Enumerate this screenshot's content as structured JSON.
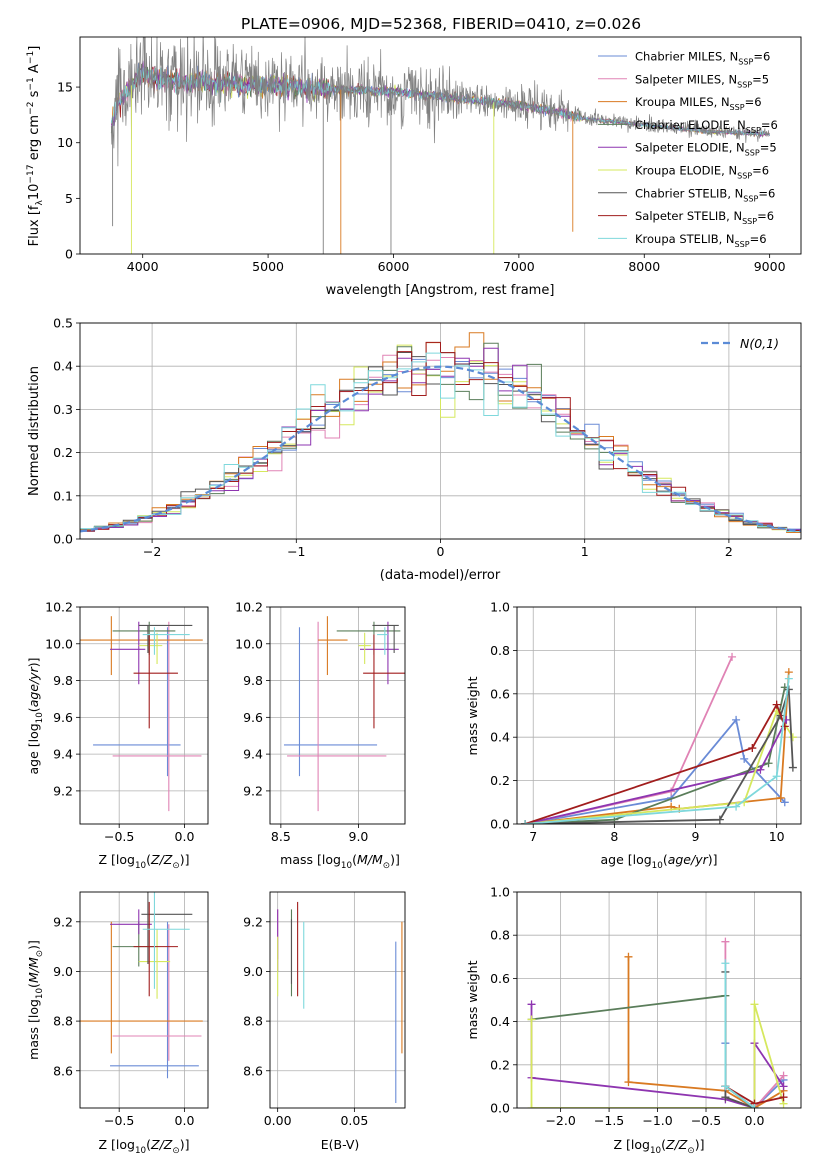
{
  "title": "PLATE=0906, MJD=52368, FIBERID=0410, z=0.026",
  "colors": [
    "#6a8bd6",
    "#e083b5",
    "#d97a22",
    "#5a7d5a",
    "#8e35b0",
    "#d6e85e",
    "#555555",
    "#a11d1d",
    "#7fd8dc"
  ],
  "chart_data": [
    {
      "id": "spectrum",
      "type": "line",
      "xlabel": "wavelength [Angstrom, rest frame]",
      "ylabel": "Flux [f_λ 10^-17 erg cm^-2 s^-1 A^-1]",
      "xlim": [
        3500,
        9250
      ],
      "ylim": [
        0,
        19.5
      ],
      "xticks": [
        4000,
        5000,
        6000,
        7000,
        8000,
        9000
      ],
      "yticks": [
        0,
        5,
        10,
        15
      ],
      "legend_position": "upper-right",
      "legend": [
        {
          "name": "Chabrier MILES",
          "n": "6"
        },
        {
          "name": "Salpeter MILES",
          "n": "5"
        },
        {
          "name": "Kroupa MILES",
          "n": "6"
        },
        {
          "name": "Chabrier ELODIE",
          "n": "6"
        },
        {
          "name": "Salpeter ELODIE",
          "n": "5"
        },
        {
          "name": "Kroupa ELODIE",
          "n": "6"
        },
        {
          "name": "Chabrier STELIB",
          "n": "6"
        },
        {
          "name": "Salpeter STELIB",
          "n": "6"
        },
        {
          "name": "Kroupa STELIB",
          "n": "6"
        }
      ],
      "legend_n_label": "N",
      "legend_n_sub": "SSP",
      "continuum": {
        "x": [
          3750,
          3800,
          3900,
          4000,
          4100,
          4300,
          4600,
          5000,
          5500,
          6000,
          6500,
          7000,
          7300,
          7500,
          8000,
          8500,
          9000
        ],
        "y": [
          11.5,
          13.5,
          15.0,
          16.5,
          15.8,
          15.5,
          15.3,
          15.2,
          14.8,
          14.6,
          14.0,
          13.4,
          12.8,
          12.2,
          11.6,
          11.0,
          10.8
        ]
      }
    },
    {
      "id": "residuals",
      "type": "histogram",
      "xlabel": "(data-model)/error",
      "ylabel": "Normed distribution",
      "xlim": [
        -2.5,
        2.5
      ],
      "ylim": [
        0,
        0.5
      ],
      "xticks": [
        -2,
        -1,
        0,
        1,
        2
      ],
      "yticks": [
        0.0,
        0.1,
        0.2,
        0.3,
        0.4,
        0.5
      ],
      "bin_width": 0.1,
      "legend_label": "N(0,1)",
      "legend_position": "upper-right"
    },
    {
      "id": "age-vs-z",
      "type": "errorbar",
      "xlabel": "Z [log10(Z/Z⊙)]",
      "ylabel": "age [log10(age/yr)]",
      "xlim": [
        -0.8,
        0.18
      ],
      "ylim": [
        9.02,
        10.2
      ],
      "xticks": [
        -0.5,
        0.0
      ],
      "yticks": [
        9.2,
        9.4,
        9.6,
        9.8,
        10.0,
        10.2
      ],
      "points": [
        {
          "x": -0.13,
          "y": 9.45,
          "xe": [
            0.57,
            0.1
          ],
          "ye": [
            0.17,
            0.64
          ]
        },
        {
          "x": -0.12,
          "y": 9.39,
          "xe": [
            0.43,
            0.25
          ],
          "ye": [
            0.3,
            0.73
          ]
        },
        {
          "x": -0.56,
          "y": 10.02,
          "xe": [
            0.24,
            0.7
          ],
          "ye": [
            0.19,
            0.13
          ]
        },
        {
          "x": -0.27,
          "y": 10.07,
          "xe": [
            0.28,
            0.2
          ],
          "ye": [
            0.13,
            0.05
          ]
        },
        {
          "x": -0.35,
          "y": 9.97,
          "xe": [
            0.22,
            0.05
          ],
          "ye": [
            0.19,
            0.15
          ]
        },
        {
          "x": -0.21,
          "y": 9.99,
          "xe": [
            0.14,
            0.04
          ],
          "ye": [
            0.1,
            0.07
          ]
        },
        {
          "x": -0.28,
          "y": 10.1,
          "xe": [
            0.07,
            0.34
          ],
          "ye": [
            0.15,
            0.0
          ]
        },
        {
          "x": -0.27,
          "y": 9.84,
          "xe": [
            0.12,
            0.22
          ],
          "ye": [
            0.3,
            0.21
          ]
        },
        {
          "x": -0.23,
          "y": 10.05,
          "xe": [
            0.09,
            0.27
          ],
          "ye": [
            0.11,
            0.04
          ]
        }
      ]
    },
    {
      "id": "age-vs-mass",
      "type": "errorbar",
      "xlabel": "mass [log10(M/M⊙)]",
      "ylabel": "",
      "xlim": [
        8.43,
        9.3
      ],
      "ylim": [
        9.02,
        10.2
      ],
      "xticks": [
        8.5,
        9.0
      ],
      "yticks": [
        9.2,
        9.4,
        9.6,
        9.8,
        10.0,
        10.2
      ],
      "points": [
        {
          "x": 8.62,
          "y": 9.45,
          "xe": [
            0.1,
            0.5
          ],
          "ye": [
            0.17,
            0.64
          ]
        },
        {
          "x": 8.74,
          "y": 9.39,
          "xe": [
            0.2,
            0.44
          ],
          "ye": [
            0.3,
            0.73
          ]
        },
        {
          "x": 8.8,
          "y": 10.02,
          "xe": [
            0.06,
            0.13
          ],
          "ye": [
            0.19,
            0.13
          ]
        },
        {
          "x": 9.1,
          "y": 10.07,
          "xe": [
            0.24,
            0.17
          ],
          "ye": [
            0.13,
            0.05
          ]
        },
        {
          "x": 9.19,
          "y": 9.97,
          "xe": [
            0.18,
            0.07
          ],
          "ye": [
            0.19,
            0.15
          ]
        },
        {
          "x": 9.04,
          "y": 9.99,
          "xe": [
            0.04,
            0.04
          ],
          "ye": [
            0.1,
            0.07
          ]
        },
        {
          "x": 9.23,
          "y": 10.1,
          "xe": [
            0.14,
            0.03
          ],
          "ye": [
            0.15,
            0.0
          ]
        },
        {
          "x": 9.1,
          "y": 9.84,
          "xe": [
            0.07,
            0.22
          ],
          "ye": [
            0.3,
            0.21
          ]
        },
        {
          "x": 9.17,
          "y": 10.05,
          "xe": [
            0.05,
            0.02
          ],
          "ye": [
            0.11,
            0.04
          ]
        }
      ]
    },
    {
      "id": "weight-vs-age",
      "type": "line",
      "xlabel": "age [log10(age/yr)]",
      "ylabel": "mass weight",
      "xlim": [
        6.8,
        10.3
      ],
      "ylim": [
        0,
        1.0
      ],
      "xticks": [
        7,
        8,
        9,
        10
      ],
      "yticks": [
        0.0,
        0.2,
        0.4,
        0.6,
        0.8,
        1.0
      ],
      "series": [
        {
          "x": [
            6.9,
            8.7,
            9.5,
            9.6,
            10.1
          ],
          "y": [
            0.0,
            0.12,
            0.48,
            0.3,
            0.1
          ]
        },
        {
          "x": [
            6.9,
            8.7,
            9.45
          ],
          "y": [
            0.0,
            0.15,
            0.77
          ]
        },
        {
          "x": [
            6.9,
            8.7,
            8.8,
            10.05,
            10.15
          ],
          "y": [
            0.0,
            0.08,
            0.07,
            0.12,
            0.7
          ]
        },
        {
          "x": [
            6.9,
            8.0,
            9.9,
            10.1
          ],
          "y": [
            0.0,
            0.02,
            0.28,
            0.63
          ]
        },
        {
          "x": [
            6.9,
            9.8,
            10.12
          ],
          "y": [
            0.0,
            0.25,
            0.48
          ]
        },
        {
          "x": [
            6.9,
            9.6,
            10.0,
            10.2
          ],
          "y": [
            0.0,
            0.1,
            0.52,
            0.4
          ]
        },
        {
          "x": [
            6.9,
            9.3,
            10.05,
            10.15,
            10.2
          ],
          "y": [
            0.0,
            0.02,
            0.5,
            0.62,
            0.26
          ]
        },
        {
          "x": [
            6.9,
            9.7,
            10.0,
            10.1
          ],
          "y": [
            0.0,
            0.35,
            0.55,
            0.45
          ]
        },
        {
          "x": [
            6.9,
            9.5,
            10.0,
            10.15
          ],
          "y": [
            0.0,
            0.08,
            0.22,
            0.67
          ]
        }
      ]
    },
    {
      "id": "mass-vs-z",
      "type": "errorbar",
      "xlabel": "Z [log10(Z/Z⊙)]",
      "ylabel": "mass [log10(M/M⊙)]",
      "xlim": [
        -0.8,
        0.18
      ],
      "ylim": [
        8.45,
        9.32
      ],
      "xticks": [
        -0.5,
        0.0
      ],
      "yticks": [
        8.6,
        8.8,
        9.0,
        9.2
      ],
      "points": [
        {
          "x": -0.13,
          "y": 8.62,
          "xe": [
            0.44,
            0.24
          ],
          "ye": [
            0.05,
            0.58
          ]
        },
        {
          "x": -0.12,
          "y": 8.74,
          "xe": [
            0.43,
            0.25
          ],
          "ye": [
            0.1,
            0.45
          ]
        },
        {
          "x": -0.56,
          "y": 8.8,
          "xe": [
            0.24,
            0.7
          ],
          "ye": [
            0.13,
            0.4
          ]
        },
        {
          "x": -0.35,
          "y": 9.1,
          "xe": [
            0.2,
            0.13
          ],
          "ye": [
            0.08,
            0.1
          ]
        },
        {
          "x": -0.35,
          "y": 9.19,
          "xe": [
            0.22,
            0.1
          ],
          "ye": [
            0.04,
            0.06
          ]
        },
        {
          "x": -0.21,
          "y": 9.04,
          "xe": [
            0.14,
            0.1
          ],
          "ye": [
            0.15,
            0.13
          ]
        },
        {
          "x": -0.28,
          "y": 9.23,
          "xe": [
            0.05,
            0.34
          ],
          "ye": [
            0.2,
            0.1
          ]
        },
        {
          "x": -0.27,
          "y": 9.1,
          "xe": [
            0.12,
            0.22
          ],
          "ye": [
            0.2,
            0.18
          ]
        },
        {
          "x": -0.23,
          "y": 9.17,
          "xe": [
            0.09,
            0.27
          ],
          "ye": [
            0.24,
            0.15
          ]
        }
      ]
    },
    {
      "id": "mass-vs-ebv",
      "type": "errorbar",
      "xlabel": "E(B-V)",
      "ylabel": "",
      "xlim": [
        -0.005,
        0.083
      ],
      "ylim": [
        8.45,
        9.32
      ],
      "xticks": [
        0.0,
        0.05
      ],
      "yticks": [
        8.6,
        8.8,
        9.0,
        9.2
      ],
      "points": [
        {
          "x": 0.077,
          "y": 8.62,
          "xe": [
            0,
            0
          ],
          "ye": [
            0.15,
            0.5
          ]
        },
        {
          "x": 0.0,
          "y": 9.1,
          "xe": [
            0,
            0
          ],
          "ye": [
            0.05,
            0.15
          ]
        },
        {
          "x": 0.081,
          "y": 8.8,
          "xe": [
            0,
            0
          ],
          "ye": [
            0.13,
            0.4
          ]
        },
        {
          "x": 0.009,
          "y": 9.05,
          "xe": [
            0,
            0
          ],
          "ye": [
            0.15,
            0.2
          ]
        },
        {
          "x": 0.0,
          "y": 9.1,
          "xe": [
            0,
            0
          ],
          "ye": [
            0.1,
            0.15
          ]
        },
        {
          "x": 0.0,
          "y": 9.04,
          "xe": [
            0,
            0
          ],
          "ye": [
            0.14,
            0.1
          ]
        },
        {
          "x": 0.009,
          "y": 9.04,
          "xe": [
            0,
            0
          ],
          "ye": [
            0.09,
            0.17
          ]
        },
        {
          "x": 0.013,
          "y": 9.0,
          "xe": [
            0,
            0
          ],
          "ye": [
            0.1,
            0.28
          ]
        },
        {
          "x": 0.017,
          "y": 9.0,
          "xe": [
            0,
            0
          ],
          "ye": [
            0.15,
            0.2
          ]
        }
      ]
    },
    {
      "id": "weight-vs-z",
      "type": "line",
      "xlabel": "Z [log10(Z/Z⊙)]",
      "ylabel": "mass weight",
      "xlim": [
        -2.45,
        0.48
      ],
      "ylim": [
        0,
        1.0
      ],
      "xticks": [
        -2.0,
        -1.5,
        -1.0,
        -0.5,
        0.0
      ],
      "yticks": [
        0.0,
        0.2,
        0.4,
        0.6,
        0.8,
        1.0
      ],
      "series": [
        {
          "x": [
            -0.3,
            -0.3,
            0.0,
            0.3
          ],
          "y": [
            0.3,
            0.1,
            0.0,
            0.13
          ]
        },
        {
          "x": [
            -0.3,
            -0.3,
            0.0,
            0.3
          ],
          "y": [
            0.77,
            0.05,
            0.0,
            0.15
          ]
        },
        {
          "x": [
            -1.3,
            -1.3,
            -0.3,
            0.0,
            0.3
          ],
          "y": [
            0.7,
            0.12,
            0.08,
            0.0,
            0.08
          ]
        },
        {
          "x": [
            -2.3,
            -0.3,
            -0.3,
            0.0
          ],
          "y": [
            0.41,
            0.52,
            0.1,
            0.0
          ]
        },
        {
          "x": [
            -2.3,
            -2.3,
            -0.3,
            0.0,
            0.0,
            0.3
          ],
          "y": [
            0.48,
            0.14,
            0.04,
            0.0,
            0.3,
            0.1
          ]
        },
        {
          "x": [
            -2.3,
            -2.3,
            0.0,
            0.0,
            0.3
          ],
          "y": [
            0.41,
            0.0,
            0.0,
            0.48,
            0.02
          ]
        },
        {
          "x": [
            -0.3,
            -0.3,
            0.0
          ],
          "y": [
            0.63,
            0.05,
            0.0
          ]
        },
        {
          "x": [
            -0.3,
            0.0,
            0.3
          ],
          "y": [
            0.1,
            0.02,
            0.05
          ]
        },
        {
          "x": [
            -0.3,
            -0.3,
            0.0
          ],
          "y": [
            0.67,
            0.1,
            0.0
          ]
        }
      ]
    }
  ]
}
